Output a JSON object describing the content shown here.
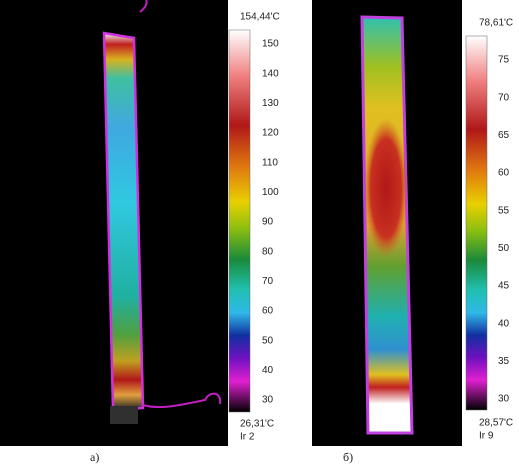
{
  "panels": [
    {
      "caption": "а)",
      "scale_max": "154,44'C",
      "scale_min": "26,31'C",
      "ir_label": "Ir 2",
      "ticks": [
        150,
        140,
        130,
        120,
        110,
        100,
        90,
        80,
        70,
        60,
        50,
        40,
        30
      ]
    },
    {
      "caption": "б)",
      "scale_max": "78,61'C",
      "scale_min": "28,57'C",
      "ir_label": "Ir 9",
      "ticks": [
        75,
        70,
        65,
        60,
        55,
        50,
        45,
        40,
        35,
        30
      ]
    }
  ]
}
